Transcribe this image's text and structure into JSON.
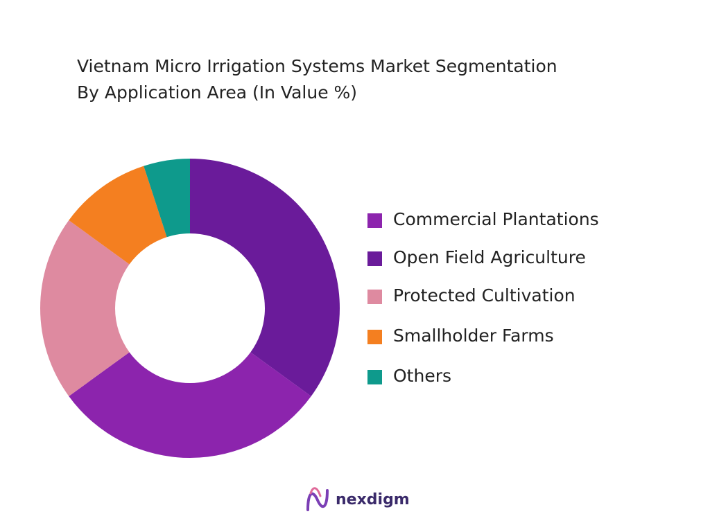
{
  "chart_data": {
    "type": "donut",
    "title": [
      "Vietnam Micro Irrigation Systems Market Segmentation",
      "By Application Area (In Value %)"
    ],
    "categories": [
      "Commercial Plantations",
      "Open Field Agriculture",
      "Protected Cultivation",
      "Smallholder Farms",
      "Others"
    ],
    "values": [
      30,
      35,
      20,
      10,
      5
    ],
    "colors": [
      "#8c24ad",
      "#6a1b9a",
      "#de8aa0",
      "#f47f20",
      "#0e9a8c"
    ],
    "legend": "right"
  },
  "logo": "nexdigm"
}
